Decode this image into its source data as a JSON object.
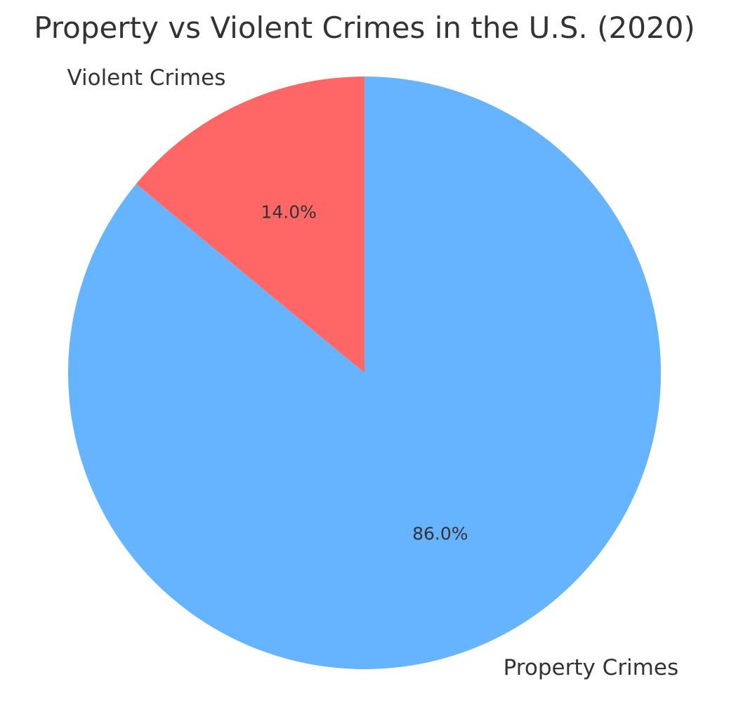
{
  "chart_data": {
    "type": "pie",
    "title": "Property vs Violent Crimes in the U.S. (2020)",
    "slices": [
      {
        "label": "Violent Crimes",
        "value": 14.0,
        "pct_label": "14.0%",
        "color": "#FF6666"
      },
      {
        "label": "Property Crimes",
        "value": 86.0,
        "pct_label": "86.0%",
        "color": "#66B3FF"
      }
    ],
    "start_angle_deg": 90,
    "direction": "counterclockwise",
    "legend": "none"
  }
}
